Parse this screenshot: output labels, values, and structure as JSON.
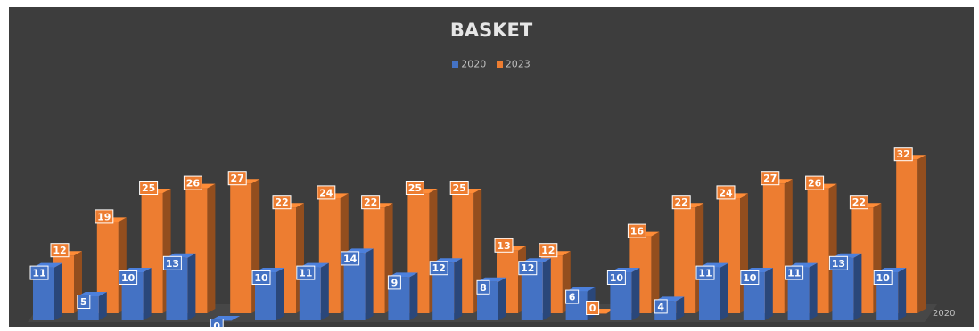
{
  "chart_data": {
    "type": "bar",
    "title": "BASKET",
    "legend_position": "top",
    "grid": false,
    "ylim": [
      0,
      35
    ],
    "depth_axis_label": "2020",
    "categories": [
      "",
      "",
      "",
      "",
      "",
      "",
      "",
      "",
      "",
      "",
      "",
      "",
      "",
      "",
      "",
      "",
      "",
      "",
      "",
      ""
    ],
    "series": [
      {
        "name": "2020",
        "color": "#4472c4",
        "values": [
          11,
          5,
          10,
          13,
          0,
          10,
          11,
          14,
          9,
          12,
          8,
          12,
          6,
          10,
          4,
          11,
          10,
          11,
          13,
          10
        ]
      },
      {
        "name": "2023",
        "color": "#ed7d31",
        "values": [
          12,
          19,
          25,
          26,
          27,
          22,
          24,
          22,
          25,
          25,
          13,
          12,
          0,
          16,
          22,
          24,
          27,
          26,
          22,
          32
        ]
      }
    ]
  }
}
